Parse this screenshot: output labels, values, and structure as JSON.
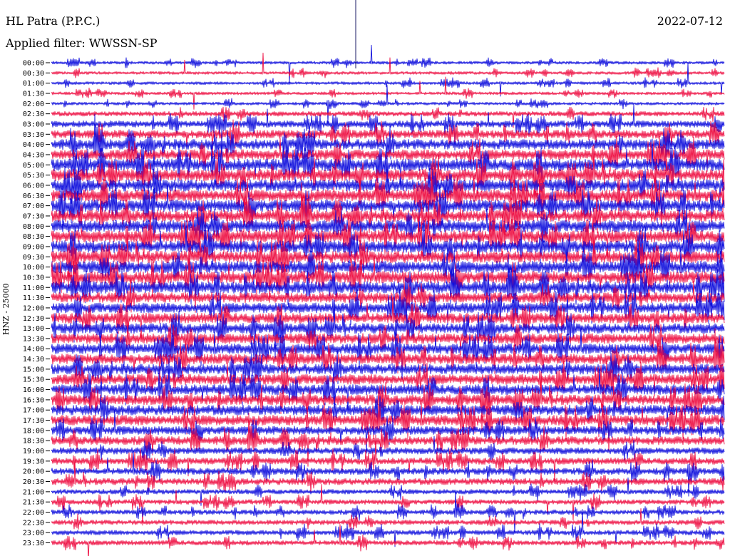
{
  "header": {
    "station": "HL Patra (P.P.C.)",
    "date": "2022-07-12",
    "filter": "Applied filter: WWSSN-SP",
    "channel_label": "HNZ - 25000"
  },
  "colors": {
    "trace_blue": "#1111dd",
    "trace_red": "#ee1144",
    "axis": "#000000"
  },
  "chart_data": {
    "type": "line",
    "title": "HL Patra (P.P.C.)",
    "subtitle": "Applied filter: WWSSN-SP",
    "ylabel": "HNZ - 25000",
    "grid": false,
    "categories": [
      "00:00",
      "00:30",
      "01:00",
      "01:30",
      "02:00",
      "02:30",
      "03:00",
      "03:30",
      "04:00",
      "04:30",
      "05:00",
      "05:30",
      "06:00",
      "06:30",
      "07:00",
      "07:30",
      "08:00",
      "08:30",
      "09:00",
      "09:30",
      "10:00",
      "10:30",
      "11:00",
      "11:30",
      "12:00",
      "12:30",
      "13:00",
      "13:30",
      "14:00",
      "14:30",
      "15:00",
      "15:30",
      "16:00",
      "16:30",
      "17:00",
      "17:30",
      "18:00",
      "18:30",
      "19:00",
      "19:30",
      "20:00",
      "20:30",
      "21:00",
      "21:30",
      "22:00",
      "22:30",
      "23:00",
      "23:30"
    ],
    "series_colors": [
      "blue",
      "red"
    ],
    "noise_level": [
      1,
      1,
      1,
      1,
      1,
      2,
      3,
      4,
      5,
      5,
      6,
      6,
      6,
      6,
      6,
      6,
      6,
      6,
      6,
      6,
      6,
      6,
      6,
      5,
      5,
      5,
      5,
      5,
      5,
      5,
      5,
      5,
      5,
      5,
      5,
      5,
      4,
      4,
      3,
      3,
      3,
      3,
      2,
      2,
      2,
      2,
      2,
      2
    ]
  }
}
